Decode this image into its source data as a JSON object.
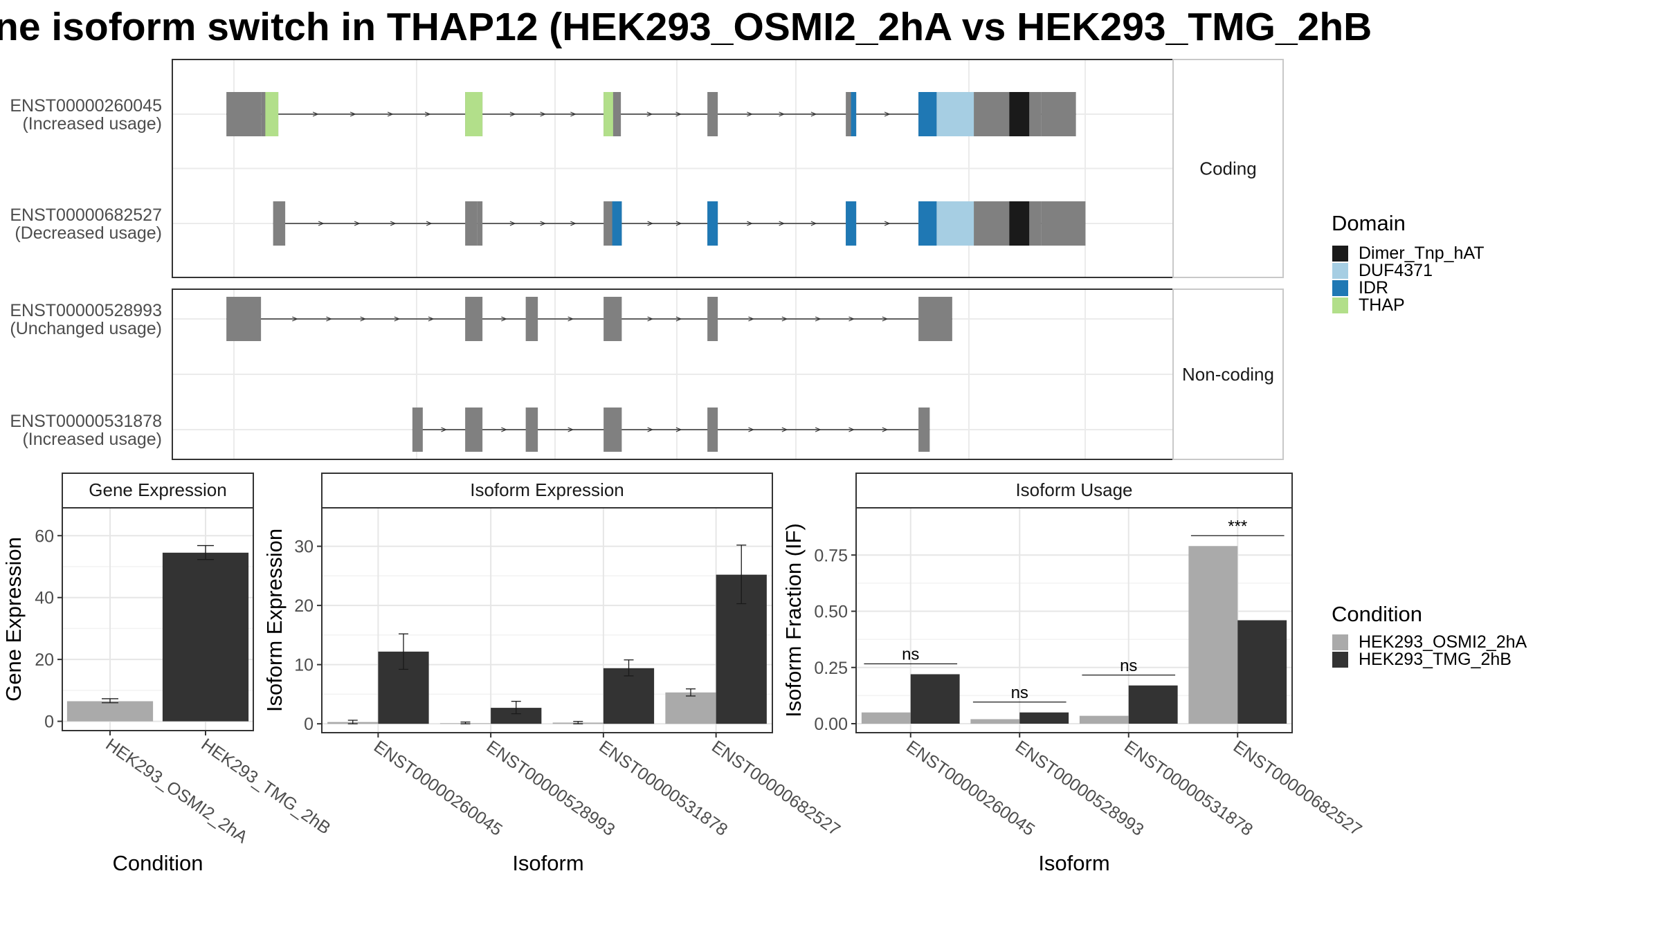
{
  "title": "ne isoform switch in THAP12 (HEK293_OSMI2_2hA vs HEK293_TMG_2hB",
  "colors": {
    "exon": "#808080",
    "intron": "#333333",
    "cond1": "#aaaaaa",
    "cond2": "#333333",
    "Dimer_Tnp_hAT": "#1a1a1a",
    "DUF4371": "#a6cee3",
    "IDR": "#1f78b4",
    "THAP": "#b2df8a"
  },
  "structure": {
    "groups": [
      {
        "label": "Coding",
        "transcripts": [
          {
            "id": "ENST00000260045",
            "status": "(Increased usage)",
            "span": [
              63,
              1045
            ],
            "utr": [
              [
                63,
                103
              ],
              [
                1005,
                1045
              ]
            ],
            "cds": [
              [
                103,
                123
              ],
              [
                339,
                359
              ],
              [
                499,
                519
              ],
              [
                619,
                631
              ],
              [
                779,
                791
              ],
              [
                863,
                1005
              ]
            ],
            "domains": [
              {
                "name": "THAP",
                "ranges": [
                  [
                    108,
                    123
                  ],
                  [
                    339,
                    359
                  ],
                  [
                    499,
                    510
                  ]
                ]
              },
              {
                "name": "IDR",
                "ranges": [
                  [
                    785,
                    791
                  ],
                  [
                    863,
                    884
                  ]
                ]
              },
              {
                "name": "DUF4371",
                "ranges": [
                  [
                    884,
                    927
                  ]
                ]
              },
              {
                "name": "Dimer_Tnp_hAT",
                "ranges": [
                  [
                    968,
                    991
                  ]
                ]
              }
            ]
          },
          {
            "id": "ENST00000682527",
            "status": "(Decreased usage)",
            "span": [
              117,
              1056
            ],
            "utr": [
              [
                117,
                131
              ],
              [
                339,
                353
              ],
              [
                1005,
                1056
              ]
            ],
            "cds": [
              [
                353,
                359
              ],
              [
                499,
                520
              ],
              [
                619,
                631
              ],
              [
                779,
                791
              ],
              [
                863,
                1005
              ]
            ],
            "domains": [
              {
                "name": "IDR",
                "ranges": [
                  [
                    509,
                    520
                  ],
                  [
                    619,
                    631
                  ],
                  [
                    779,
                    791
                  ],
                  [
                    863,
                    884
                  ]
                ]
              },
              {
                "name": "DUF4371",
                "ranges": [
                  [
                    884,
                    927
                  ]
                ]
              },
              {
                "name": "Dimer_Tnp_hAT",
                "ranges": [
                  [
                    968,
                    991
                  ]
                ]
              }
            ]
          }
        ]
      },
      {
        "label": "Non-coding",
        "transcripts": [
          {
            "id": "ENST00000528993",
            "status": "(Unchanged usage)",
            "span": [
              63,
              902
            ],
            "utr": [
              [
                63,
                103
              ],
              [
                339,
                359
              ],
              [
                409,
                423
              ],
              [
                499,
                520
              ],
              [
                619,
                631
              ],
              [
                863,
                902
              ]
            ],
            "cds": [],
            "domains": []
          },
          {
            "id": "ENST00000531878",
            "status": "(Increased usage)",
            "span": [
              278,
              876
            ],
            "utr": [
              [
                278,
                290
              ],
              [
                339,
                359
              ],
              [
                409,
                423
              ],
              [
                499,
                520
              ],
              [
                619,
                631
              ],
              [
                863,
                876
              ]
            ],
            "cds": [],
            "domains": []
          }
        ]
      }
    ]
  },
  "legends": {
    "domain": {
      "title": "Domain",
      "items": [
        "Dimer_Tnp_hAT",
        "DUF4371",
        "IDR",
        "THAP"
      ]
    },
    "condition": {
      "title": "Condition",
      "items": [
        "HEK293_OSMI2_2hA",
        "HEK293_TMG_2hB"
      ]
    }
  },
  "chart_data": [
    {
      "type": "bar",
      "title": "Gene Expression",
      "xlabel": "Condition",
      "ylabel": "Gene Expression",
      "ylim": [
        -3,
        69
      ],
      "yticks": [
        0,
        20,
        40,
        60
      ],
      "categories": [
        "HEK293_OSMI2_2hA",
        "HEK293_TMG_2hB"
      ],
      "values": [
        6.5,
        54.5
      ],
      "errors": [
        [
          6.0,
          7.3
        ],
        [
          52.3,
          56.8
        ]
      ],
      "colors": [
        "#aaaaaa",
        "#333333"
      ],
      "grid": true
    },
    {
      "type": "bar",
      "title": "Isoform Expression",
      "xlabel": "Isoform",
      "ylabel": "Isoform Expression",
      "ylim": [
        -1.5,
        36.5
      ],
      "yticks": [
        0,
        10,
        20,
        30
      ],
      "categories": [
        "ENST00000260045",
        "ENST00000528993",
        "ENST00000531878",
        "ENST00000682527"
      ],
      "series": [
        {
          "name": "HEK293_OSMI2_2hA",
          "values": [
            0.3,
            0.1,
            0.2,
            5.3
          ],
          "errors": [
            [
              0.0,
              0.6
            ],
            [
              0.0,
              0.3
            ],
            [
              0.0,
              0.4
            ],
            [
              4.7,
              5.9
            ]
          ]
        },
        {
          "name": "HEK293_TMG_2hB",
          "values": [
            12.2,
            2.7,
            9.4,
            25.2
          ],
          "errors": [
            [
              9.2,
              15.2
            ],
            [
              1.7,
              3.8
            ],
            [
              8.1,
              10.8
            ],
            [
              20.3,
              30.2
            ]
          ]
        }
      ],
      "grid": true
    },
    {
      "type": "bar",
      "title": "Isoform Usage",
      "xlabel": "Isoform",
      "ylabel": "Isoform Fraction (IF)",
      "ylim": [
        -0.04,
        0.96
      ],
      "yticks": [
        "0.00",
        "0.25",
        "0.50",
        "0.75"
      ],
      "categories": [
        "ENST00000260045",
        "ENST00000528993",
        "ENST00000531878",
        "ENST00000682527"
      ],
      "series": [
        {
          "name": "HEK293_OSMI2_2hA",
          "values": [
            0.05,
            0.02,
            0.035,
            0.79
          ]
        },
        {
          "name": "HEK293_TMG_2hB",
          "values": [
            0.22,
            0.05,
            0.17,
            0.46
          ]
        }
      ],
      "significance": [
        "ns",
        "ns",
        "ns",
        "***"
      ],
      "grid": true
    }
  ]
}
